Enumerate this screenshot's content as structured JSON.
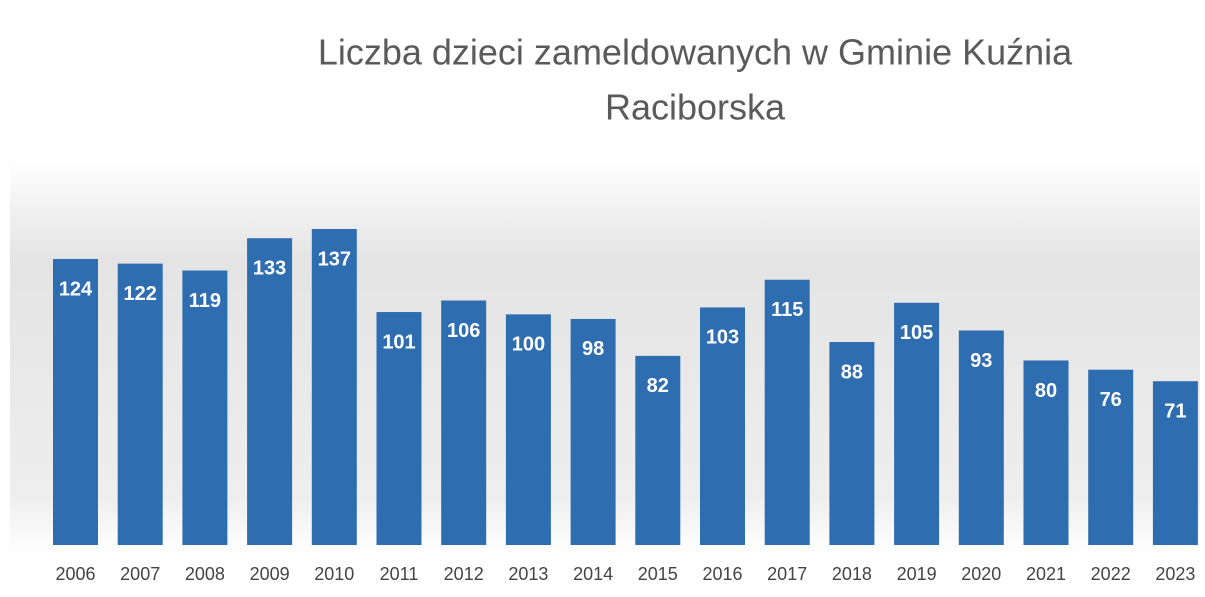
{
  "chart_data": {
    "type": "bar",
    "title": [
      "Liczba dzieci zameldowanych w Gminie Kuźnia",
      "Raciborska"
    ],
    "categories": [
      "2006",
      "2007",
      "2008",
      "2009",
      "2010",
      "2011",
      "2012",
      "2013",
      "2014",
      "2015",
      "2016",
      "2017",
      "2018",
      "2019",
      "2020",
      "2021",
      "2022",
      "2023"
    ],
    "values": [
      124,
      122,
      119,
      133,
      137,
      101,
      106,
      100,
      98,
      82,
      103,
      115,
      88,
      105,
      93,
      80,
      76,
      71
    ],
    "color": "#2e6db0"
  }
}
